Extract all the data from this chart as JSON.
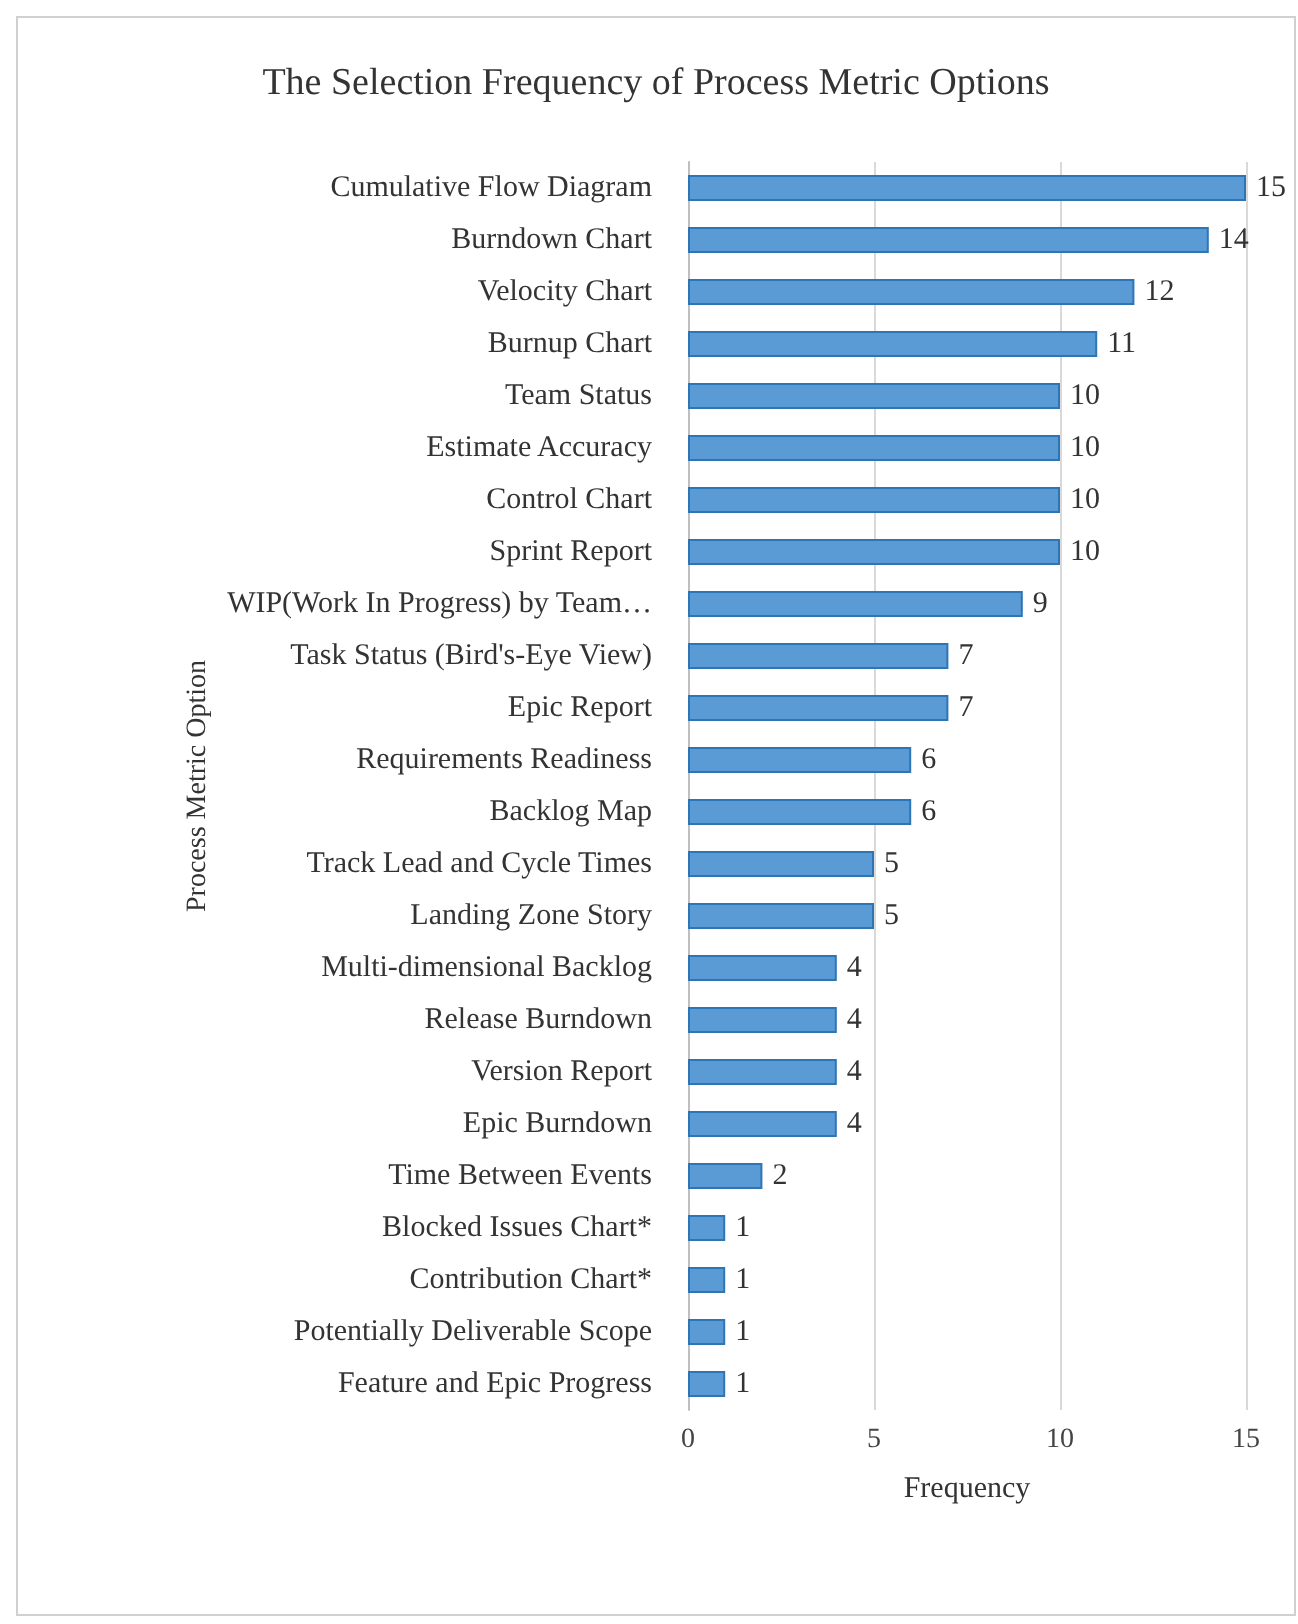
{
  "chart_data": {
    "type": "bar",
    "orientation": "horizontal",
    "title": "The Selection Frequency of Process Metric Options",
    "xlabel": "Frequency",
    "ylabel": "Process Metric Option",
    "categories": [
      "Cumulative Flow Diagram",
      "Burndown Chart",
      "Velocity Chart",
      "Burnup Chart",
      "Team Status",
      "Estimate Accuracy",
      "Control Chart",
      "Sprint Report",
      "WIP(Work In Progress) by Team…",
      "Task Status (Bird's-Eye View)",
      "Epic Report",
      "Requirements Readiness",
      "Backlog Map",
      "Track Lead and Cycle Times",
      "Landing Zone Story",
      "Multi-dimensional Backlog",
      "Release Burndown",
      "Version Report",
      "Epic Burndown",
      "Time Between Events",
      "Blocked Issues Chart*",
      "Contribution Chart*",
      "Potentially Deliverable Scope",
      "Feature and Epic Progress"
    ],
    "values": [
      15,
      14,
      12,
      11,
      10,
      10,
      10,
      10,
      9,
      7,
      7,
      6,
      6,
      5,
      5,
      4,
      4,
      4,
      4,
      2,
      1,
      1,
      1,
      1
    ],
    "color": "#5b9bd5",
    "xlim": [
      0,
      15
    ],
    "xticks": [
      0,
      5,
      10,
      15
    ],
    "grid": "x",
    "data_labels": true
  }
}
